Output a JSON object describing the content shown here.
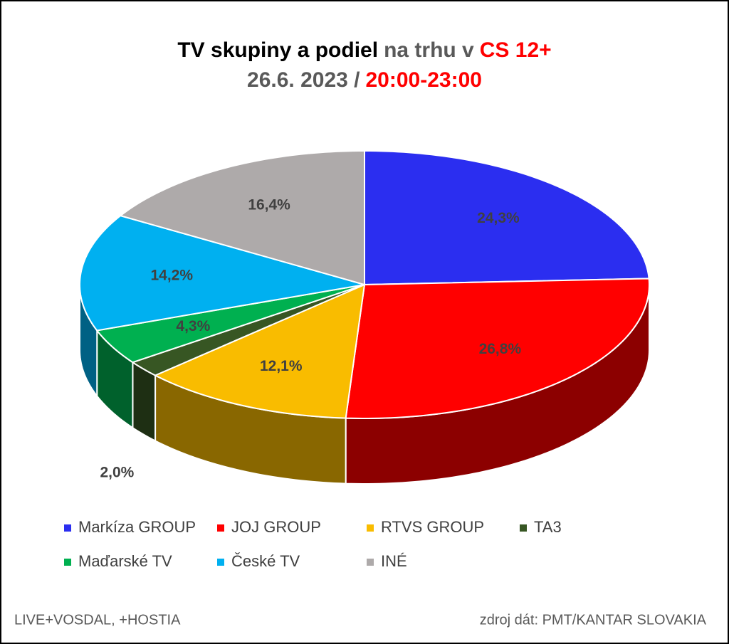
{
  "chart_data": {
    "type": "pie3d",
    "title_lines": [
      [
        {
          "text": "TV skupiny a podiel",
          "color": "#000000"
        },
        {
          "text": "na trhu v",
          "color": "#595959"
        },
        {
          "text": "CS 12+",
          "color": "#ff0000"
        }
      ],
      [
        {
          "text": "26.6. 2023 /",
          "color": "#595959"
        },
        {
          "text": "20:00-23:00",
          "color": "#ff0000"
        }
      ]
    ],
    "categories": [
      "Markíza GROUP",
      "JOJ GROUP",
      "RTVS GROUP",
      "TA3",
      "Maďarské  TV",
      "České  TV",
      "INÉ"
    ],
    "values": [
      24.3,
      26.8,
      12.1,
      2.0,
      4.3,
      14.2,
      16.4
    ],
    "value_labels": [
      "24,3%",
      "26,8%",
      "12,1%",
      "2,0%",
      "4,3%",
      "14,2%",
      "16,4%"
    ],
    "colors": [
      "#2b2ef0",
      "#ff0000",
      "#f9bc00",
      "#375623",
      "#00b050",
      "#00b0f0",
      "#aeaaaa"
    ],
    "legend": "bottom",
    "footer_left": "LIVE+VOSDAL, +HOSTIA",
    "footer_right": "zdroj dát: PMT/KANTAR SLOVAKIA"
  }
}
